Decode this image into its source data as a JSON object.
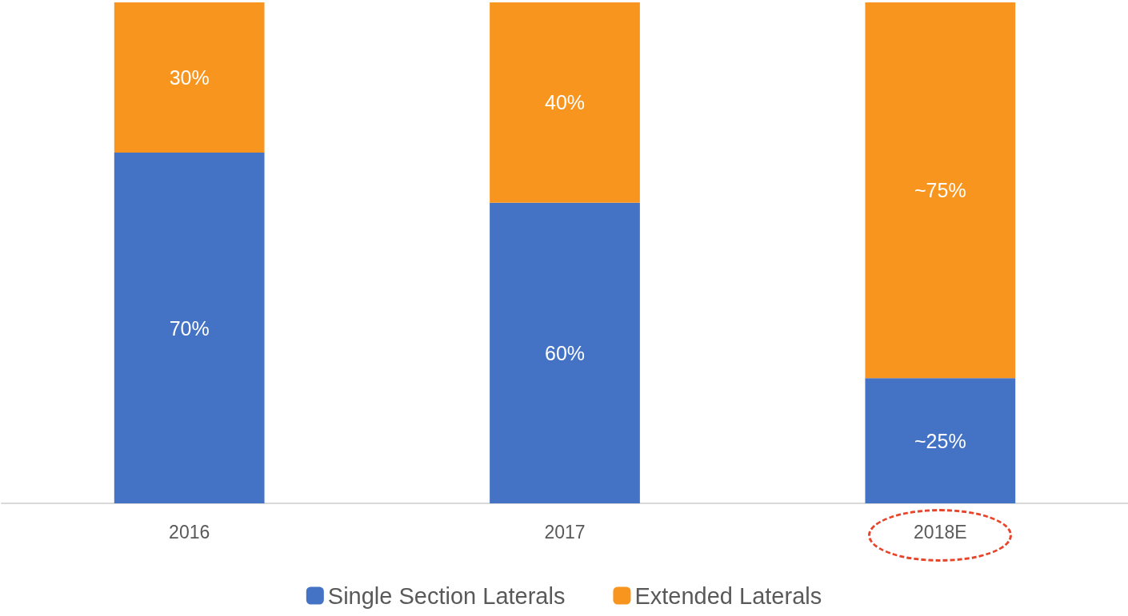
{
  "chart_data": {
    "type": "bar",
    "stacked": true,
    "categories": [
      "2016",
      "2017",
      "2018E"
    ],
    "series": [
      {
        "name": "Single Section Laterals",
        "color": "#4472c4",
        "values": [
          70,
          60,
          25
        ],
        "value_labels": [
          "70%",
          "60%",
          "~25%"
        ]
      },
      {
        "name": "Extended Laterals",
        "color": "#f7951f",
        "values": [
          30,
          40,
          75
        ],
        "value_labels": [
          "30%",
          "40%",
          "~75%"
        ]
      }
    ],
    "ylim": [
      0,
      100
    ],
    "tick_labels": "x",
    "grid": false,
    "legend": "bottom"
  }
}
